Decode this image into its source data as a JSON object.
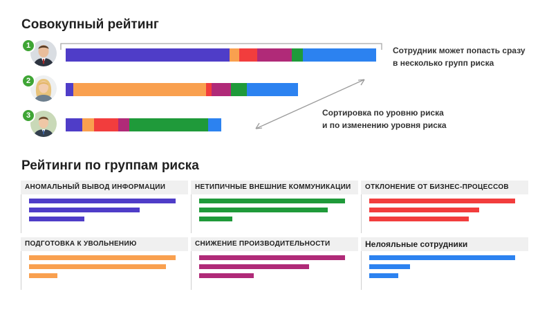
{
  "titles": {
    "overall": "Совокупный рейтинг",
    "groups": "Рейтинги по группам риска"
  },
  "annotations": {
    "multi_group": [
      "Сотрудник может попасть сразу",
      "в несколько групп риска"
    ],
    "sorting": [
      "Сортировка по уровню риска",
      "и по изменению уровня риска"
    ]
  },
  "colors": {
    "anomalous_output": "#4f3dc8",
    "atypical_comms": "#1f9a3a",
    "process_deviation": "#f23d3d",
    "resignation_prep": "#f9a04f",
    "productivity_drop": "#b02a78",
    "disloyal": "#2c82f0",
    "rank_badge": "#3fa535"
  },
  "employees": [
    {
      "rank": "1",
      "avatar": "man-suit-photo",
      "segments": [
        {
          "color": "#4f3dc8",
          "value": 237
        },
        {
          "color": "#f9a04f",
          "value": 14
        },
        {
          "color": "#f23d3d",
          "value": 26
        },
        {
          "color": "#b02a78",
          "value": 50
        },
        {
          "color": "#1f9a3a",
          "value": 16
        },
        {
          "color": "#2c82f0",
          "value": 106
        }
      ]
    },
    {
      "rank": "2",
      "avatar": "woman-blonde-photo",
      "segments": [
        {
          "color": "#4f3dc8",
          "value": 11
        },
        {
          "color": "#f9a04f",
          "value": 192
        },
        {
          "color": "#f23d3d",
          "value": 8
        },
        {
          "color": "#b02a78",
          "value": 28
        },
        {
          "color": "#1f9a3a",
          "value": 23
        },
        {
          "color": "#2c82f0",
          "value": 74
        }
      ]
    },
    {
      "rank": "3",
      "avatar": "young-man-photo",
      "segments": [
        {
          "color": "#4f3dc8",
          "value": 24
        },
        {
          "color": "#f9a04f",
          "value": 17
        },
        {
          "color": "#f23d3d",
          "value": 35
        },
        {
          "color": "#b02a78",
          "value": 16
        },
        {
          "color": "#1f9a3a",
          "value": 114
        },
        {
          "color": "#2c82f0",
          "value": 19
        }
      ]
    }
  ],
  "groups": [
    {
      "title": "АНОМАЛЬНЫЙ ВЫВОД ИНФОРМАЦИИ",
      "color": "#4f3dc8",
      "values": [
        212,
        160,
        80
      ]
    },
    {
      "title": "НЕТИПИЧНЫЕ ВНЕШНИЕ КОММУНИКАЦИИ",
      "color": "#1f9a3a",
      "values": [
        211,
        186,
        48
      ]
    },
    {
      "title": "ОТКЛОНЕНИЕ ОТ БИЗНЕС-ПРОЦЕССОВ",
      "color": "#f23d3d",
      "values": [
        211,
        159,
        144
      ]
    },
    {
      "title": "ПОДГОТОВКА К УВОЛЬНЕНИЮ",
      "color": "#f9a04f",
      "values": [
        212,
        198,
        41
      ]
    },
    {
      "title": "СНИЖЕНИЕ ПРОИЗВОДИТЕЛЬНОСТИ",
      "color": "#b02a78",
      "values": [
        211,
        159,
        79
      ]
    },
    {
      "title": "Нелояльные сотрудники",
      "color": "#2c82f0",
      "values": [
        211,
        59,
        42
      ]
    }
  ]
}
